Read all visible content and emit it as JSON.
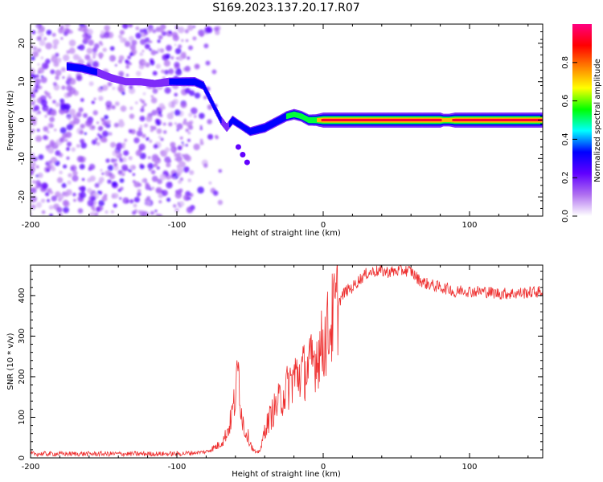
{
  "figure_title": "S169.2023.137.20.17.R07",
  "chart_data": [
    {
      "type": "heatmap",
      "xlabel": "Height of straight line (km)",
      "ylabel": "Frequency (Hz)",
      "xlim": [
        -200,
        150
      ],
      "ylim": [
        -25,
        25
      ],
      "xticks": [
        "-200",
        "-100",
        "0",
        "100"
      ],
      "yticks": [
        "-20",
        "-10",
        "0",
        "10",
        "20"
      ],
      "colorbar": {
        "label": "Normalized spectral amplitude",
        "range": [
          0,
          1
        ],
        "ticks": [
          "0.0",
          "0.2",
          "0.4",
          "0.6",
          "0.8"
        ],
        "colors": [
          "#ffffff",
          "#b070f0",
          "#6000ff",
          "#0000ff",
          "#00ffff",
          "#00ff00",
          "#ffff00",
          "#ff8000",
          "#ff0000",
          "#ff0080"
        ]
      },
      "ridge": {
        "x": [
          -175,
          -165,
          -155,
          -145,
          -135,
          -125,
          -115,
          -105,
          -95,
          -88,
          -82,
          -78,
          -74,
          -70,
          -66,
          -62,
          -58,
          -54,
          -50,
          -45,
          -40,
          -35,
          -30,
          -25,
          -20,
          -15,
          -10,
          -5,
          0,
          20,
          50,
          80,
          82,
          86,
          90,
          120,
          150
        ],
        "y": [
          14,
          13.5,
          12.5,
          11,
          10,
          10,
          9.5,
          10,
          10,
          10,
          9,
          6,
          3,
          0,
          -2,
          0,
          -1,
          -2,
          -3,
          -2.5,
          -2,
          -1,
          0,
          1,
          1.5,
          1,
          0,
          0,
          0,
          0,
          0,
          0,
          0,
          0,
          0,
          0,
          0
        ],
        "amplitude": [
          0.3,
          0.3,
          0.25,
          0.2,
          0.15,
          0.15,
          0.15,
          0.25,
          0.3,
          0.35,
          0.3,
          0.3,
          0.25,
          0.25,
          0.2,
          0.3,
          0.25,
          0.25,
          0.3,
          0.35,
          0.4,
          0.4,
          0.4,
          0.45,
          0.5,
          0.5,
          0.55,
          0.6,
          0.95,
          0.95,
          0.95,
          0.95,
          0.7,
          0.7,
          0.95,
          0.95,
          0.95
        ]
      },
      "branch": {
        "x": [
          -58,
          -55,
          -52
        ],
        "y": [
          -7,
          -9,
          -11
        ]
      },
      "noise_region_x": [
        -200,
        -90
      ]
    },
    {
      "type": "line",
      "xlabel": "Height of straight line (km)",
      "ylabel": "SNR (10 * v/v)",
      "xlim": [
        -200,
        150
      ],
      "ylim": [
        0,
        475
      ],
      "xticks": [
        "-200",
        "-100",
        "0",
        "100"
      ],
      "yticks": [
        "0",
        "100",
        "200",
        "300",
        "400"
      ],
      "color": "#ee3030",
      "envelope": {
        "x": [
          -200,
          -150,
          -100,
          -90,
          -80,
          -72,
          -68,
          -64,
          -60,
          -58,
          -56,
          -54,
          -52,
          -50,
          -48,
          -45,
          -42,
          -40,
          -35,
          -30,
          -25,
          -20,
          -15,
          -10,
          -5,
          0,
          5,
          10,
          15,
          20,
          25,
          30,
          35,
          40,
          45,
          50,
          55,
          60,
          65,
          70,
          80,
          88,
          90,
          92,
          95,
          100,
          110,
          120,
          130,
          150
        ],
        "y": [
          10,
          10,
          10,
          12,
          15,
          30,
          45,
          80,
          150,
          220,
          120,
          70,
          60,
          40,
          20,
          10,
          30,
          70,
          110,
          140,
          170,
          200,
          210,
          220,
          250,
          280,
          330,
          380,
          410,
          420,
          440,
          455,
          460,
          460,
          458,
          460,
          462,
          460,
          440,
          430,
          420,
          415,
          400,
          410,
          415,
          410,
          410,
          405,
          405,
          410
        ]
      }
    }
  ]
}
